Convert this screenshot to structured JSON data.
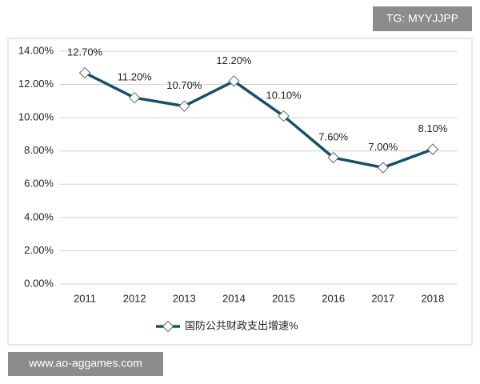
{
  "chart_data": {
    "type": "line",
    "categories": [
      "2011",
      "2012",
      "2013",
      "2014",
      "2015",
      "2016",
      "2017",
      "2018"
    ],
    "series": [
      {
        "name": "国防公共财政支出增速%",
        "color": "#17506b",
        "values": [
          12.7,
          11.2,
          10.7,
          12.2,
          10.1,
          7.6,
          7.0,
          8.1
        ],
        "value_labels": [
          "12.70%",
          "11.20%",
          "10.70%",
          "12.20%",
          "10.10%",
          "7.60%",
          "7.00%",
          "8.10%"
        ]
      }
    ],
    "ylim": [
      0,
      14
    ],
    "yticks": [
      {
        "value": 0,
        "label": "0.00%"
      },
      {
        "value": 2,
        "label": "2.00%"
      },
      {
        "value": 4,
        "label": "4.00%"
      },
      {
        "value": 6,
        "label": "6.00%"
      },
      {
        "value": 8,
        "label": "8.00%"
      },
      {
        "value": 10,
        "label": "10.00%"
      },
      {
        "value": 12,
        "label": "12.00%"
      },
      {
        "value": 14,
        "label": "14.00%"
      }
    ],
    "grid": true,
    "legend": "bottom"
  },
  "watermarks": [
    "TG: MYYJJPP",
    "www.ao-aggames.com"
  ]
}
